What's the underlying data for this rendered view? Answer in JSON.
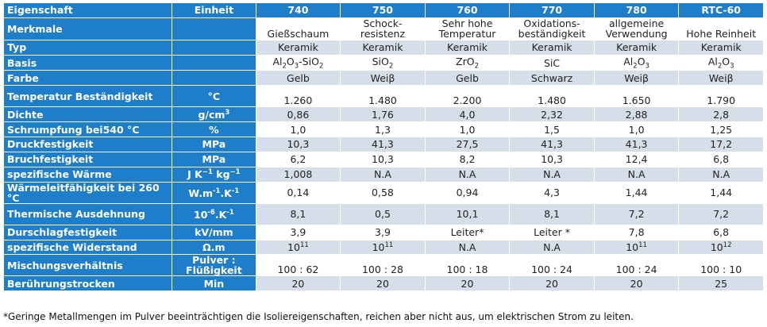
{
  "header": {
    "property": "Eigenschaft",
    "unit": "Einheit",
    "products": [
      "740",
      "750",
      "760",
      "770",
      "780",
      "RTC-60"
    ]
  },
  "rows": [
    {
      "property": "Merkmale",
      "unit": "",
      "values": [
        "Gießschaum",
        "Schock-resistenz",
        "Sehr hohe Temperatur",
        "Oxidations-beständigkeit",
        "allgemeine Verwendung",
        "Hohe Reinheit"
      ]
    },
    {
      "property": "Typ",
      "unit": "",
      "values": [
        "Keramik",
        "Keramik",
        "Keramik",
        "Keramik",
        "Keramik",
        "Keramik"
      ]
    },
    {
      "property": "Basis",
      "unit": "",
      "values": [
        "Al2O3-SiO2",
        "SiO2",
        "ZrO2",
        "SiC",
        "Al2O3",
        "Al2O3"
      ]
    },
    {
      "property": "Farbe",
      "unit": "",
      "values": [
        "Gelb",
        "Weiβ",
        "Gelb",
        "Schwarz",
        "Weiβ",
        "Weiβ"
      ]
    },
    {
      "property": "Temperatur Beständigkeit",
      "unit": "°C",
      "values": [
        "1.260",
        "1.480",
        "2.200",
        "1.480",
        "1.650",
        "1.790"
      ]
    },
    {
      "property": "Dichte",
      "unit": "g/cm3",
      "values": [
        "0,86",
        "1,76",
        "4,0",
        "2,32",
        "2,88",
        "2,8"
      ]
    },
    {
      "property": "Schrumpfung bei540 °C",
      "unit": "%",
      "values": [
        "1,0",
        "1,3",
        "1,0",
        "1,5",
        "1,0",
        "1,25"
      ]
    },
    {
      "property": "Druckfestigkeit",
      "unit": "MPa",
      "values": [
        "10,3",
        "41,3",
        "27,5",
        "41,3",
        "41,3",
        "17,2"
      ]
    },
    {
      "property": "Bruchfestigkeit",
      "unit": "MPa",
      "values": [
        "6,2",
        "10,3",
        "8,2",
        "10,3",
        "12,4",
        "6,8"
      ]
    },
    {
      "property": "spezifische Wärme",
      "unit": "J K-1 kg-1",
      "values": [
        "1,008",
        "N.A",
        "N.A",
        "N.A",
        "N.A",
        "N.A"
      ]
    },
    {
      "property": "Wärmeleitfähigkeit bei 260 °C",
      "unit": "W.m-1.K-1",
      "values": [
        "0,14",
        "0,58",
        "0,94",
        "4,3",
        "1,44",
        "1,44"
      ]
    },
    {
      "property": "Thermische Ausdehnung",
      "unit": "10-6.K-1",
      "values": [
        "8,1",
        "0,5",
        "10,1",
        "8,1",
        "7,2",
        "7,2"
      ]
    },
    {
      "property": "Durschlagfestigkeit",
      "unit": "kV/mm",
      "values": [
        "3,9",
        "3,9",
        "Leiter*",
        "Leiter *",
        "7,8",
        "6,8"
      ]
    },
    {
      "property": "spezifische Widerstand",
      "unit": "Ω.m",
      "values": [
        "1011",
        "1011",
        "N.A",
        "N.A",
        "1011",
        "1012"
      ]
    },
    {
      "property": "Mischungsverhältnis",
      "unit": "Pulver : Flüßigkeit",
      "values": [
        "100 : 62",
        "100 : 28",
        "100 : 18",
        "100 : 24",
        "100 : 24",
        "100 : 10"
      ]
    },
    {
      "property": "Berührungstrocken",
      "unit": "Min",
      "values": [
        "20",
        "20",
        "20",
        "20",
        "20",
        "25"
      ]
    }
  ],
  "footnote": "*Geringe Metallmengen im Pulver beeinträchtigen die Isoliereigenschaften, reichen aber nicht aus, um elektrischen Strom zu leiten."
}
